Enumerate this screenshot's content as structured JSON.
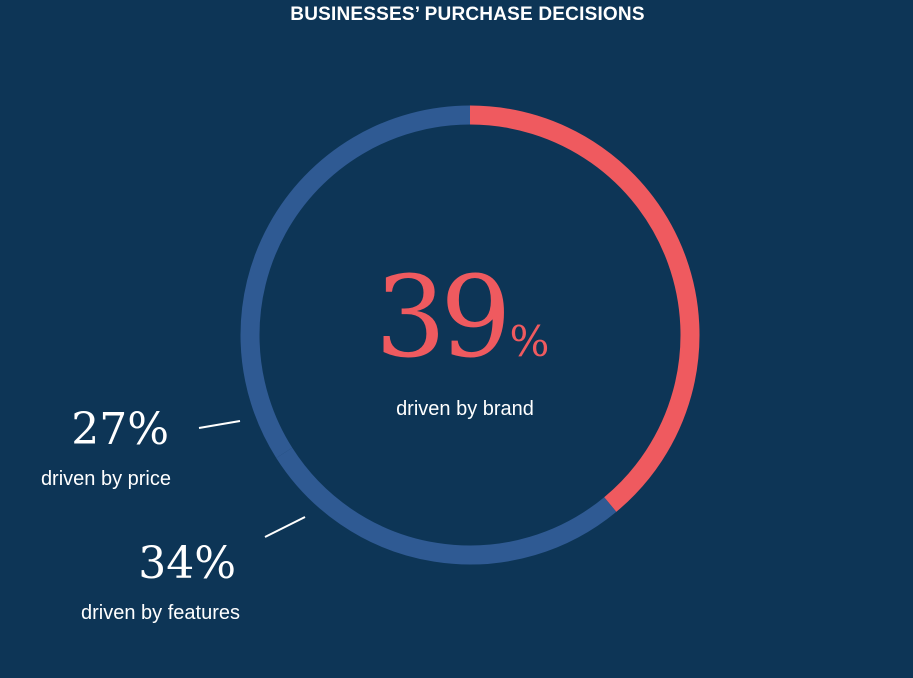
{
  "chart_data": {
    "type": "pie",
    "title": "BUSINESSES’ PURCHASE DECISIONS",
    "slices": [
      {
        "key": "brand",
        "value": 39,
        "value_text": "39",
        "unit": "%",
        "label": "driven by brand",
        "color": "#ef5a5f"
      },
      {
        "key": "price",
        "value": 27,
        "value_text": "27%",
        "label": "driven by price",
        "color": "#2f5a93"
      },
      {
        "key": "features",
        "value": 34,
        "value_text": "34%",
        "label": "driven by features",
        "color": "#2f5a93"
      }
    ]
  },
  "colors": {
    "background": "#0d3556",
    "brand": "#ef5a5f",
    "other": "#2f5a93",
    "text": "#ffffff"
  }
}
